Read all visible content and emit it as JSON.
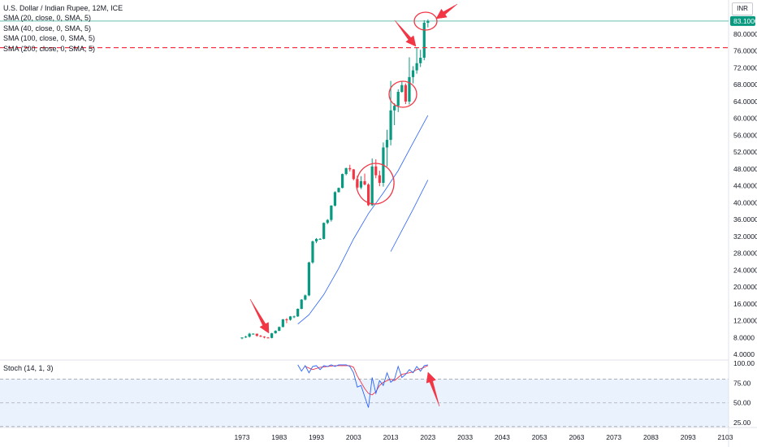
{
  "header": {
    "title": "U.S. Dollar / Indian Rupee, 12M, ICE",
    "currency": "INR"
  },
  "indicators": [
    "SMA (20, close, 0, SMA, 5)",
    "SMA (40, close, 0, SMA, 5)",
    "SMA (100, close, 0, SMA, 5)",
    "SMA (200, close, 0, SMA, 5)"
  ],
  "stoch": {
    "label": "Stoch (14, 1, 3)",
    "ticks": [
      "100.00",
      "75.00",
      "50.00",
      "25.00"
    ],
    "upper_band": 80,
    "lower_band": 20,
    "middle": 50,
    "k_values": [
      [
        1988,
        98
      ],
      [
        1989,
        90
      ],
      [
        1990,
        97
      ],
      [
        1991,
        88
      ],
      [
        1992,
        96
      ],
      [
        1993,
        97
      ],
      [
        1994,
        92
      ],
      [
        1995,
        97
      ],
      [
        1996,
        96
      ],
      [
        1997,
        98
      ],
      [
        1998,
        96
      ],
      [
        1999,
        98
      ],
      [
        2000,
        98
      ],
      [
        2001,
        98
      ],
      [
        2002,
        96
      ],
      [
        2003,
        88
      ],
      [
        2004,
        70
      ],
      [
        2005,
        72
      ],
      [
        2006,
        58
      ],
      [
        2007,
        44
      ],
      [
        2008,
        82
      ],
      [
        2009,
        62
      ],
      [
        2010,
        78
      ],
      [
        2011,
        72
      ],
      [
        2012,
        88
      ],
      [
        2013,
        76
      ],
      [
        2014,
        80
      ],
      [
        2015,
        96
      ],
      [
        2016,
        82
      ],
      [
        2017,
        86
      ],
      [
        2018,
        92
      ],
      [
        2019,
        88
      ],
      [
        2020,
        96
      ],
      [
        2021,
        90
      ],
      [
        2022,
        97
      ],
      [
        2023,
        98
      ]
    ],
    "d_values": [
      [
        1990,
        96
      ],
      [
        1992,
        92
      ],
      [
        1994,
        95
      ],
      [
        1996,
        96
      ],
      [
        1998,
        97
      ],
      [
        2000,
        97
      ],
      [
        2002,
        97
      ],
      [
        2003,
        95
      ],
      [
        2004,
        84
      ],
      [
        2005,
        76
      ],
      [
        2006,
        68
      ],
      [
        2007,
        62
      ],
      [
        2008,
        60
      ],
      [
        2009,
        64
      ],
      [
        2010,
        72
      ],
      [
        2011,
        76
      ],
      [
        2012,
        78
      ],
      [
        2013,
        80
      ],
      [
        2014,
        78
      ],
      [
        2015,
        82
      ],
      [
        2016,
        86
      ],
      [
        2017,
        87
      ],
      [
        2018,
        88
      ],
      [
        2019,
        89
      ],
      [
        2020,
        92
      ],
      [
        2021,
        93
      ],
      [
        2022,
        95
      ],
      [
        2023,
        97
      ]
    ]
  },
  "price_axis": {
    "ticks": [
      "80.0000",
      "76.0000",
      "72.0000",
      "68.0000",
      "64.0000",
      "60.0000",
      "56.0000",
      "52.0000",
      "48.0000",
      "44.0000",
      "40.0000",
      "36.0000",
      "32.0000",
      "28.0000",
      "24.0000",
      "20.0000",
      "16.0000",
      "12.0000",
      "8.0000",
      "4.0000"
    ],
    "last_price_label": "83.1000",
    "last_price": 83.1,
    "last_price_color": "#089981",
    "horizontal_line": 76.8
  },
  "time_axis": {
    "ticks": [
      "1973",
      "1983",
      "1993",
      "2003",
      "2013",
      "2023",
      "2033",
      "2043",
      "2053",
      "2063",
      "2073",
      "2083",
      "2093",
      "2103"
    ]
  },
  "colors": {
    "up": "#089981",
    "down": "#f23645",
    "sma": "#2962ff",
    "stoch_k": "#2962ff",
    "stoch_d": "#f23645",
    "annotation": "#f23645",
    "band_fill": "#eaf3fd"
  },
  "chart_data": {
    "type": "candlestick",
    "title": "U.S. Dollar / Indian Rupee, 12M, ICE",
    "ylim": [
      3,
      84
    ],
    "xlim": [
      1970,
      2107
    ],
    "candles": [
      [
        1973,
        7.8,
        8.0,
        7.6,
        8.0
      ],
      [
        1974,
        8.0,
        8.4,
        7.9,
        8.2
      ],
      [
        1975,
        8.2,
        9.1,
        8.0,
        8.9
      ],
      [
        1976,
        8.9,
        9.0,
        8.7,
        8.9
      ],
      [
        1977,
        8.9,
        8.9,
        8.2,
        8.4
      ],
      [
        1978,
        8.4,
        8.6,
        8.1,
        8.2
      ],
      [
        1979,
        8.2,
        8.3,
        7.8,
        8.0
      ],
      [
        1980,
        8.0,
        8.1,
        7.8,
        7.9
      ],
      [
        1981,
        7.9,
        9.1,
        7.8,
        9.0
      ],
      [
        1982,
        9.0,
        9.7,
        8.9,
        9.6
      ],
      [
        1983,
        9.6,
        10.6,
        9.5,
        10.5
      ],
      [
        1984,
        10.5,
        12.4,
        10.4,
        12.3
      ],
      [
        1985,
        12.3,
        12.6,
        11.4,
        12.2
      ],
      [
        1986,
        12.2,
        13.1,
        12.0,
        13.0
      ],
      [
        1987,
        13.0,
        13.2,
        12.6,
        13.0
      ],
      [
        1988,
        13.0,
        14.9,
        12.9,
        14.8
      ],
      [
        1989,
        14.8,
        17.1,
        14.7,
        17.0
      ],
      [
        1990,
        17.0,
        18.2,
        16.8,
        18.0
      ],
      [
        1991,
        18.0,
        26.0,
        17.8,
        25.8
      ],
      [
        1992,
        25.8,
        31.0,
        25.5,
        30.8
      ],
      [
        1993,
        30.8,
        31.6,
        30.4,
        31.4
      ],
      [
        1994,
        31.4,
        31.6,
        31.2,
        31.4
      ],
      [
        1995,
        31.4,
        35.3,
        31.3,
        35.2
      ],
      [
        1996,
        35.2,
        36.1,
        34.9,
        35.9
      ],
      [
        1997,
        35.9,
        39.4,
        35.5,
        39.3
      ],
      [
        1998,
        39.3,
        42.7,
        39.1,
        42.5
      ],
      [
        1999,
        42.5,
        43.6,
        42.4,
        43.5
      ],
      [
        2000,
        43.5,
        46.9,
        43.4,
        46.8
      ],
      [
        2001,
        46.8,
        48.3,
        46.5,
        48.2
      ],
      [
        2002,
        48.2,
        49.0,
        47.4,
        47.9
      ],
      [
        2003,
        47.9,
        48.0,
        45.3,
        45.6
      ],
      [
        2004,
        45.6,
        46.4,
        43.3,
        43.6
      ],
      [
        2005,
        43.6,
        46.3,
        43.2,
        45.1
      ],
      [
        2006,
        45.1,
        46.9,
        44.1,
        44.3
      ],
      [
        2007,
        44.3,
        44.6,
        39.2,
        39.4
      ],
      [
        2008,
        39.4,
        50.5,
        39.2,
        48.6
      ],
      [
        2009,
        48.6,
        50.3,
        45.8,
        46.5
      ],
      [
        2010,
        46.5,
        47.6,
        43.9,
        44.7
      ],
      [
        2011,
        44.7,
        54.3,
        43.8,
        53.1
      ],
      [
        2012,
        53.1,
        57.3,
        48.6,
        54.9
      ],
      [
        2013,
        54.9,
        68.9,
        53.6,
        61.9
      ],
      [
        2014,
        61.9,
        63.6,
        58.4,
        63.0
      ],
      [
        2015,
        63.0,
        66.9,
        61.5,
        66.3
      ],
      [
        2016,
        66.3,
        68.9,
        66.1,
        67.9
      ],
      [
        2017,
        67.9,
        68.3,
        63.4,
        64.0
      ],
      [
        2018,
        64.0,
        74.5,
        63.3,
        69.8
      ],
      [
        2019,
        69.8,
        72.4,
        68.3,
        71.4
      ],
      [
        2020,
        71.4,
        76.9,
        70.6,
        73.1
      ],
      [
        2021,
        73.1,
        76.3,
        72.2,
        74.4
      ],
      [
        2022,
        74.4,
        83.3,
        73.8,
        82.7
      ],
      [
        2023,
        82.7,
        83.5,
        81.6,
        83.1
      ]
    ],
    "sma": [
      {
        "values": [
          [
            1988,
            11.2
          ],
          [
            1991,
            13.4
          ],
          [
            1995,
            18.2
          ],
          [
            1999,
            24.4
          ],
          [
            2003,
            31.4
          ],
          [
            2007,
            37.4
          ],
          [
            2011,
            42.3
          ],
          [
            2015,
            47.6
          ],
          [
            2019,
            54.2
          ],
          [
            2023,
            60.7
          ]
        ]
      },
      {
        "values": [
          [
            2013,
            28.4
          ],
          [
            2016,
            33.4
          ],
          [
            2019,
            38.4
          ],
          [
            2023,
            45.4
          ]
        ]
      }
    ],
    "horizontal_line": 76.8,
    "last_price": 83.1
  }
}
